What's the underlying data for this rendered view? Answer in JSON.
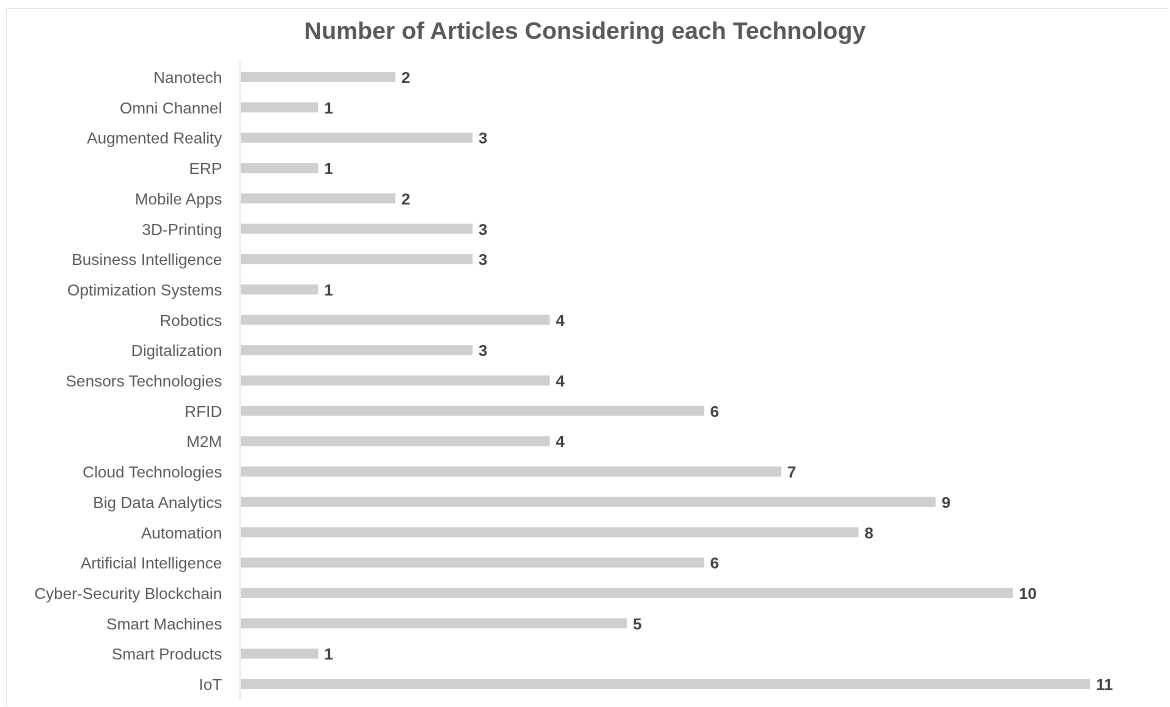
{
  "chart_data": {
    "type": "bar",
    "orientation": "horizontal",
    "title": "Number of Articles Considering each Technology",
    "xlabel": "",
    "ylabel": "",
    "grid": false,
    "legend": "none",
    "xlim": [
      0,
      11
    ],
    "bar_color": "#d0cece",
    "categories": [
      "Nanotech",
      "Omni Channel",
      "Augmented Reality",
      "ERP",
      "Mobile Apps",
      "3D-Printing",
      "Business Intelligence",
      "Optimization Systems",
      "Robotics",
      "Digitalization",
      "Sensors Technologies",
      "RFID",
      "M2M",
      "Cloud Technologies",
      "Big Data Analytics",
      "Automation",
      "Artificial Intelligence",
      "Cyber-Security Blockchain",
      "Smart Machines",
      "Smart Products",
      "IoT"
    ],
    "values": [
      2,
      1,
      3,
      1,
      2,
      3,
      3,
      1,
      4,
      3,
      4,
      6,
      4,
      7,
      9,
      8,
      6,
      10,
      5,
      1,
      11
    ]
  }
}
